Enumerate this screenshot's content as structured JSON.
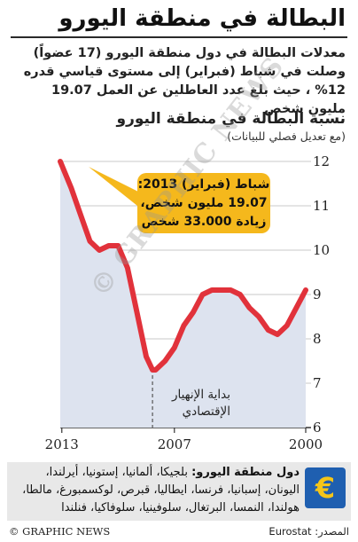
{
  "header": {
    "title": "البطالة في منطقة اليورو",
    "intro": "معدلات البطالة في دول منطقة اليورو (17 عضواً) وصلت في شباط (فبراير) إلى مستوى قياسي قدره 12% ، حيث بلغ عدد العاطلين عن العمل 19.07 مليون شخص"
  },
  "chart_data": {
    "type": "area",
    "title": "نسبة البطالة في منطقة اليورو",
    "subtitle": "(مع تعديل فصلي للبيانات)",
    "x_axis": {
      "ticks": [
        "2000",
        "2007",
        "2013"
      ],
      "range": [
        "2000-01",
        "2013-02"
      ],
      "direction": "right-to-left"
    },
    "y_axis": {
      "ticks": [
        6,
        7,
        8,
        9,
        10,
        11,
        12
      ],
      "range": [
        6,
        12
      ],
      "position": "right"
    },
    "grid": "horizontal",
    "series": [
      {
        "x": [
          "2000-01",
          "2000-07",
          "2001-01",
          "2001-07",
          "2002-01",
          "2002-07",
          "2003-01",
          "2003-07",
          "2004-01",
          "2004-07",
          "2005-01",
          "2005-07",
          "2006-01",
          "2006-07",
          "2007-01",
          "2007-07",
          "2008-01",
          "2008-03",
          "2008-07",
          "2009-01",
          "2009-07",
          "2010-01",
          "2010-07",
          "2011-01",
          "2011-07",
          "2012-01",
          "2012-07",
          "2013-02"
        ],
        "y": [
          9.1,
          8.7,
          8.3,
          8.1,
          8.2,
          8.5,
          8.7,
          9.0,
          9.1,
          9.1,
          9.1,
          9.0,
          8.6,
          8.3,
          7.8,
          7.5,
          7.3,
          7.3,
          7.6,
          8.6,
          9.6,
          10.1,
          10.1,
          10.0,
          10.2,
          10.8,
          11.4,
          12.0
        ]
      }
    ],
    "annotations": [
      {
        "text": "شباط (فبراير) 2013:\n19.07 مليون شخص،\nزيادة 33.000 شخص",
        "x": "2013-02",
        "y": 12.0
      },
      {
        "text": "بداية الإنهيار\nالإقتصادي",
        "x": "2008-03",
        "y": 7.3
      }
    ],
    "colors": {
      "line": "#e1323b",
      "area": "#dde3ef",
      "callout": "#f5b81c"
    }
  },
  "members_panel": {
    "label": "دول منطقة اليورو:",
    "countries": "بلجيكا، ألمانيا، إستونيا، أيرلندا، اليونان، إسبانيا، فرنسا، ايطاليا، قبرص، لوكسمبورغ، مالطا، هولندا، النمسا، البرتغال، سلوفينيا، سلوفاكيا، فنلندا",
    "icon": "euro-icon",
    "icon_glyph": "€"
  },
  "footer": {
    "credit": "© GRAPHIC NEWS",
    "source": "المصدر: Eurostat"
  },
  "watermark": "© GRAPHIC NEWS"
}
